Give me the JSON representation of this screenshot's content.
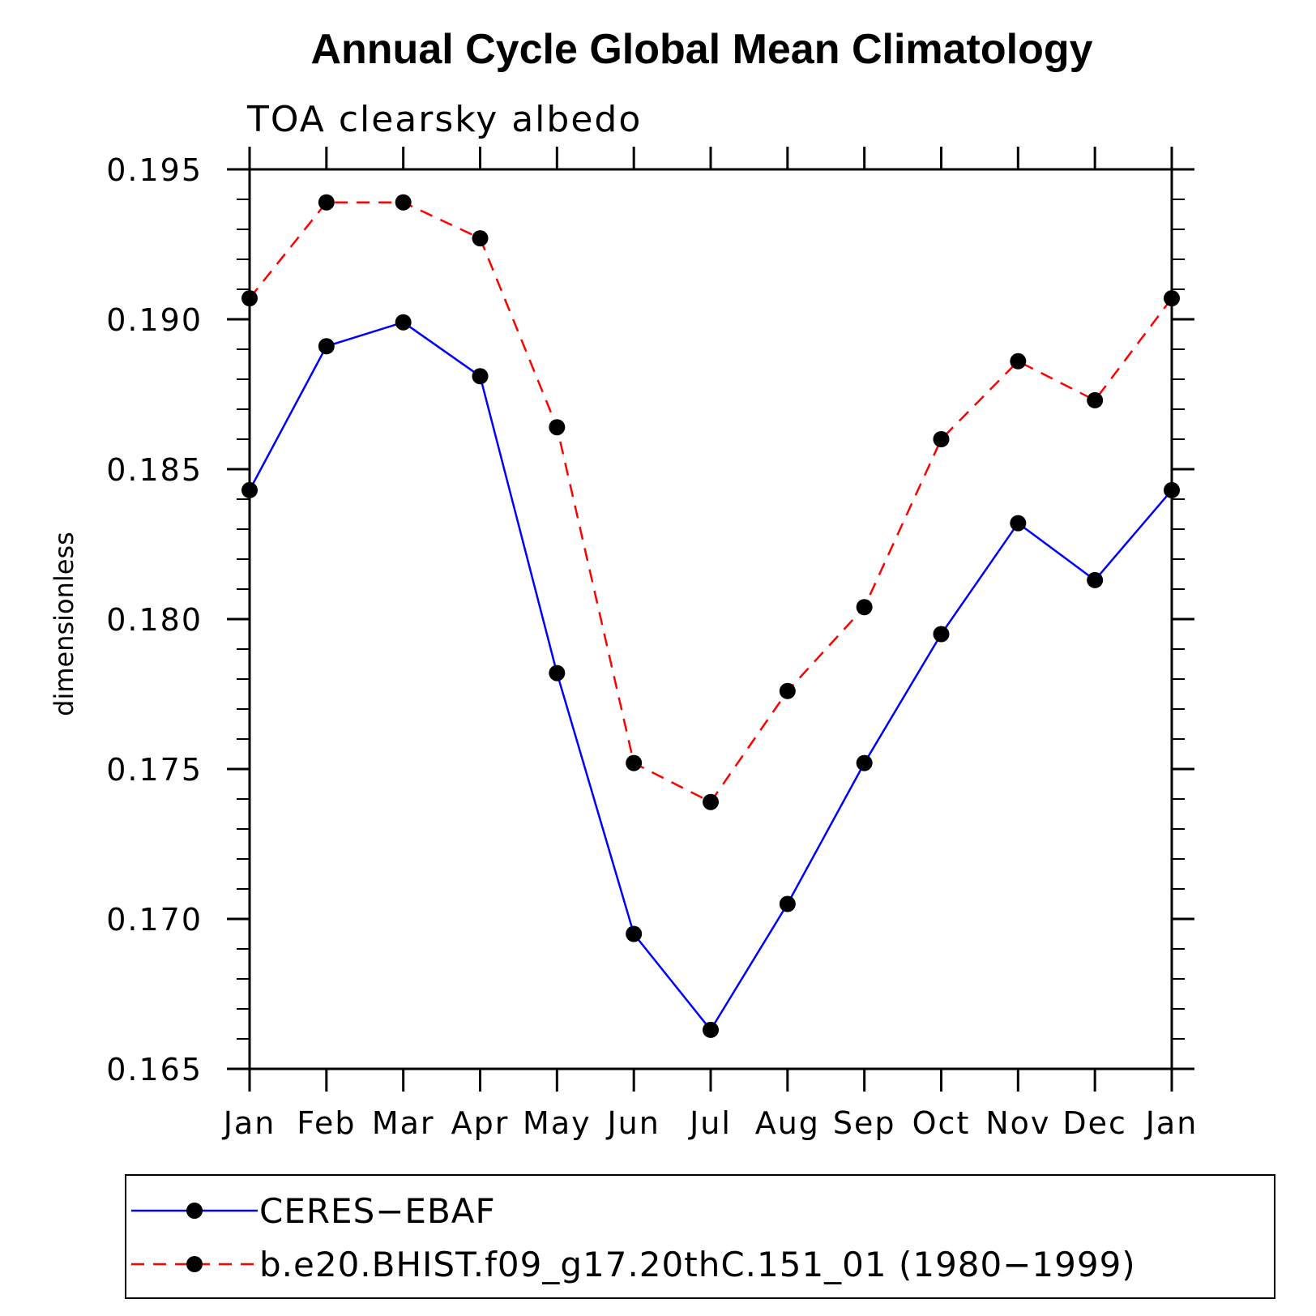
{
  "chart_data": {
    "type": "line",
    "title": "Annual Cycle Global Mean Climatology",
    "subtitle": "TOA clearsky albedo",
    "xlabel": "",
    "ylabel": "dimensionless",
    "categories": [
      "Jan",
      "Feb",
      "Mar",
      "Apr",
      "May",
      "Jun",
      "Jul",
      "Aug",
      "Sep",
      "Oct",
      "Nov",
      "Dec",
      "Jan"
    ],
    "ylim": [
      0.165,
      0.195
    ],
    "yticks": [
      "0.165",
      "0.170",
      "0.175",
      "0.180",
      "0.185",
      "0.190",
      "0.195"
    ],
    "ytick_values": [
      0.165,
      0.17,
      0.175,
      0.18,
      0.185,
      0.19,
      0.195
    ],
    "grid": false,
    "legend_position": "bottom",
    "series": [
      {
        "name": "CERES−EBAF",
        "color": "#0000ff",
        "line_style": "solid",
        "marker": "filled-circle",
        "values": [
          0.1843,
          0.1891,
          0.1899,
          0.1881,
          0.1782,
          0.1695,
          0.1663,
          0.1705,
          0.1752,
          0.1795,
          0.1832,
          0.1813,
          0.1843
        ]
      },
      {
        "name": "b.e20.BHIST.f09_g17.20thC.151_01 (1980−1999)",
        "color": "#ff0000",
        "line_style": "dashed",
        "marker": "filled-circle",
        "values": [
          0.1907,
          0.1939,
          0.1939,
          0.1927,
          0.1864,
          0.1752,
          0.1739,
          0.1776,
          0.1804,
          0.186,
          0.1886,
          0.1873,
          0.1907
        ]
      }
    ]
  }
}
